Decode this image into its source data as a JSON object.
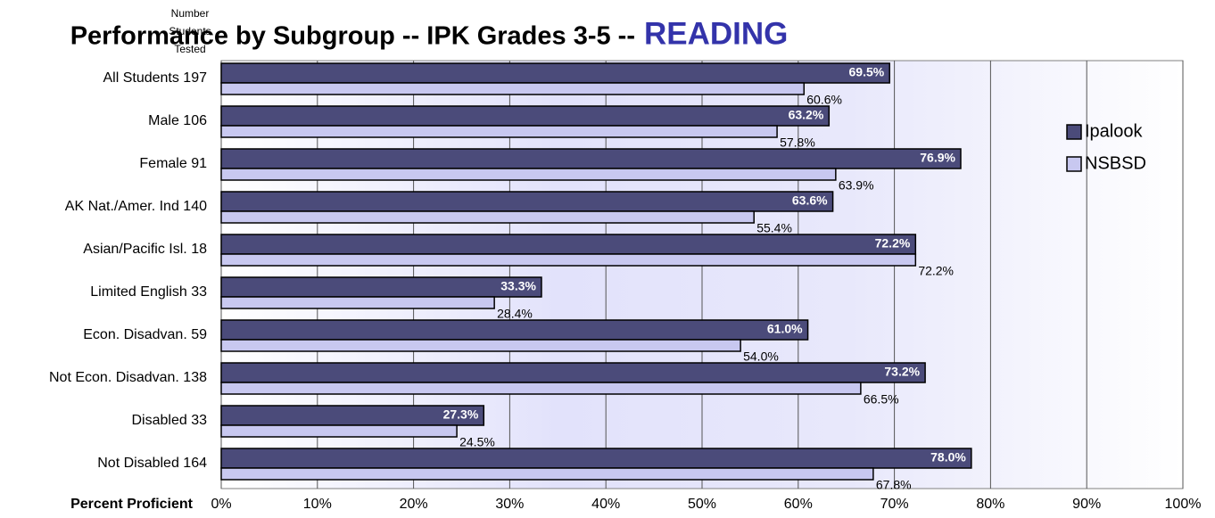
{
  "chart_data": {
    "type": "bar",
    "orientation": "horizontal",
    "title": "Performance by Subgroup -- IPK Grades 3-5 --",
    "title_highlight": "READING",
    "y_header": [
      "Number",
      "Students",
      "Tested"
    ],
    "xlabel": "Percent Proficient",
    "categories": [
      "All Students  197",
      "Male  106",
      "Female  91",
      "AK Nat./Amer. Ind  140",
      "Asian/Pacific Isl.  18",
      "Limited English  33",
      "Econ. Disadvan.  59",
      "Not Econ. Disadvan. 138",
      "Disabled  33",
      "Not Disabled  164"
    ],
    "series": [
      {
        "name": "Ipalook",
        "color": "#4b4b7a",
        "values": [
          69.5,
          63.2,
          76.9,
          63.6,
          72.2,
          33.3,
          61.0,
          73.2,
          27.3,
          78.0
        ],
        "value_labels": [
          "69.5%",
          "63.2%",
          "76.9%",
          "63.6%",
          "72.2%",
          "33.3%",
          "61.0%",
          "73.2%",
          "27.3%",
          "78.0%"
        ]
      },
      {
        "name": "NSBSD",
        "color": "#c8c8f0",
        "values": [
          60.6,
          57.8,
          63.9,
          55.4,
          72.2,
          28.4,
          54.0,
          66.5,
          24.5,
          67.8
        ],
        "value_labels": [
          "60.6%",
          "57.8%",
          "63.9%",
          "55.4%",
          "72.2%",
          "28.4%",
          "54.0%",
          "66.5%",
          "24.5%",
          "67.8%"
        ]
      }
    ],
    "xlim": [
      0,
      100
    ],
    "xticks": [
      {
        "value": 0,
        "label": "0%"
      },
      {
        "value": 10,
        "label": "10%"
      },
      {
        "value": 20,
        "label": "20%"
      },
      {
        "value": 30,
        "label": "30%"
      },
      {
        "value": 40,
        "label": "40%"
      },
      {
        "value": 50,
        "label": "50%"
      },
      {
        "value": 60,
        "label": "60%"
      },
      {
        "value": 70,
        "label": "70%"
      },
      {
        "value": 80,
        "label": "80%"
      },
      {
        "value": 90,
        "label": "90%"
      },
      {
        "value": 100,
        "label": "100%"
      }
    ],
    "grid": true,
    "legend": "upper right"
  }
}
